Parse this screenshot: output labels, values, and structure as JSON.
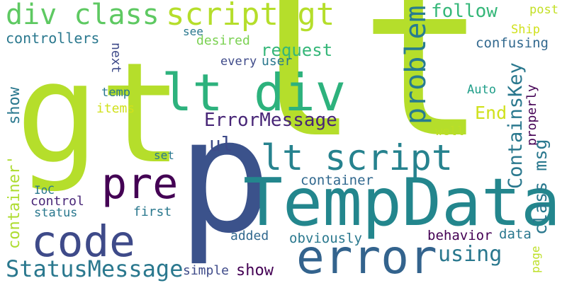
{
  "words": [
    {
      "text": "lt",
      "color": "#b5de2b"
    },
    {
      "text": "gt",
      "color": "#b5de2b"
    },
    {
      "text": "p",
      "color": "#3b528b"
    },
    {
      "text": "TempData",
      "color": "#23868d"
    },
    {
      "text": "error",
      "color": "#33638d"
    },
    {
      "text": "code",
      "color": "#3e4a89"
    },
    {
      "text": "pre",
      "color": "#440154"
    },
    {
      "text": "lt div",
      "color": "#2db27d"
    },
    {
      "text": "script gt",
      "color": "#b5de2b"
    },
    {
      "text": "div class",
      "color": "#5ec962"
    },
    {
      "text": "lt script",
      "color": "#26828e"
    },
    {
      "text": "problem",
      "color": "#287c8e"
    },
    {
      "text": "follow",
      "color": "#35b779"
    },
    {
      "text": "post",
      "color": "#c2df23"
    },
    {
      "text": "see",
      "color": "#2a788e"
    },
    {
      "text": "desired",
      "color": "#7ad151"
    },
    {
      "text": "controllers",
      "color": "#2a788e"
    },
    {
      "text": "request",
      "color": "#35b779"
    },
    {
      "text": "Ship",
      "color": "#d0e11c"
    },
    {
      "text": "confusing",
      "color": "#31688e"
    },
    {
      "text": "next",
      "color": "#3e4a89"
    },
    {
      "text": "every",
      "color": "#3e4a89"
    },
    {
      "text": "user",
      "color": "#2a788e"
    },
    {
      "text": "temp",
      "color": "#2a788e"
    },
    {
      "text": "Auto",
      "color": "#1f9e89"
    },
    {
      "text": "ContainsKey",
      "color": "#2a788e"
    },
    {
      "text": "End",
      "color": "#d0e11c"
    },
    {
      "text": "properly",
      "color": "#440154"
    },
    {
      "text": "items",
      "color": "#d0e11c"
    },
    {
      "text": "ErrorMessage",
      "color": "#482677"
    },
    {
      "text": "show",
      "color": "#2a788e"
    },
    {
      "text": "well",
      "color": "#bddf26"
    },
    {
      "text": "ul",
      "color": "#3e4a89"
    },
    {
      "text": "container'",
      "color": "#addc30"
    },
    {
      "text": "class msg",
      "color": "#2a788e"
    },
    {
      "text": "set",
      "color": "#2a788e"
    },
    {
      "text": "container",
      "color": "#31688e"
    },
    {
      "text": "IoC",
      "color": "#2a788e"
    },
    {
      "text": "control",
      "color": "#482677"
    },
    {
      "text": "status",
      "color": "#2a788e"
    },
    {
      "text": "first",
      "color": "#2a788e"
    },
    {
      "text": "added",
      "color": "#31688e"
    },
    {
      "text": "obviously",
      "color": "#2a788e"
    },
    {
      "text": "behavior",
      "color": "#440154"
    },
    {
      "text": "data",
      "color": "#2a788e"
    },
    {
      "text": "using",
      "color": "#2a788e"
    },
    {
      "text": "page",
      "color": "#bddf26"
    },
    {
      "text": "StatusMessage",
      "color": "#2a788e"
    },
    {
      "text": "simple",
      "color": "#3e4a89"
    },
    {
      "text": "show",
      "color": "#440154"
    }
  ]
}
